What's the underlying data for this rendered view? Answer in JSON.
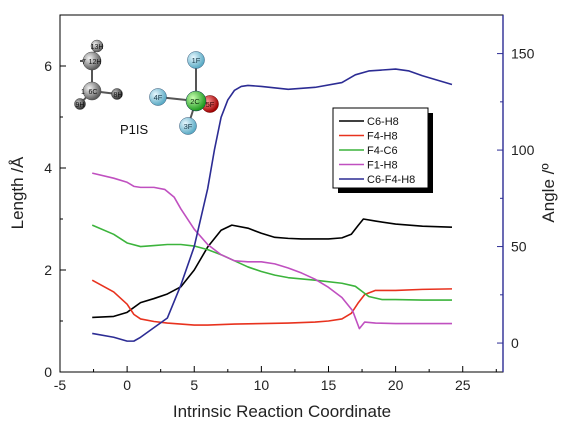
{
  "chart_data": {
    "type": "line",
    "xlabel": "Intrinsic Reaction Coordinate",
    "ylabel_left": "Length /Å",
    "ylabel_right": "Angle /º",
    "xlim": [
      -5,
      28
    ],
    "ylim_left": [
      0,
      7
    ],
    "ylim_right": [
      -15,
      170
    ],
    "x_ticks": [
      -5,
      0,
      5,
      10,
      15,
      20,
      25
    ],
    "y_ticks_left": [
      0,
      2,
      4,
      6
    ],
    "y_ticks_right": [
      0,
      50,
      100,
      150
    ],
    "grid": false,
    "legend_position": "center-right",
    "series": [
      {
        "name": "C6-H8",
        "axis": "left",
        "color": "#000000",
        "x": [
          -2.6,
          -1,
          0,
          1,
          2,
          3,
          4,
          5,
          6,
          7,
          7.8,
          9,
          10,
          11,
          12,
          13,
          14,
          15,
          16,
          16.7,
          17.2,
          17.6,
          18.5,
          20,
          22,
          24.2
        ],
        "y": [
          1.07,
          1.09,
          1.17,
          1.36,
          1.44,
          1.53,
          1.67,
          2.0,
          2.45,
          2.78,
          2.88,
          2.82,
          2.72,
          2.64,
          2.62,
          2.61,
          2.61,
          2.61,
          2.63,
          2.7,
          2.87,
          3.0,
          2.96,
          2.9,
          2.86,
          2.84
        ]
      },
      {
        "name": "F4-H8",
        "axis": "left",
        "color": "#e8321e",
        "x": [
          -2.6,
          -1,
          0,
          0.5,
          1,
          2,
          3,
          4,
          5,
          6,
          8,
          10,
          12,
          14,
          15,
          16,
          16.7,
          17.2,
          17.7,
          18.5,
          20,
          22,
          24.2
        ],
        "y": [
          1.8,
          1.57,
          1.33,
          1.13,
          1.04,
          0.99,
          0.96,
          0.94,
          0.92,
          0.92,
          0.94,
          0.95,
          0.96,
          0.98,
          1.0,
          1.04,
          1.15,
          1.35,
          1.52,
          1.6,
          1.6,
          1.62,
          1.63
        ]
      },
      {
        "name": "F4-C6",
        "axis": "left",
        "color": "#3cb43c",
        "x": [
          -2.6,
          -1,
          0,
          1,
          2,
          3,
          4,
          5,
          6,
          7,
          8,
          9,
          10,
          11,
          12,
          14,
          16,
          17,
          17.5,
          18,
          19,
          20,
          22,
          24.2
        ],
        "y": [
          2.88,
          2.7,
          2.53,
          2.46,
          2.48,
          2.5,
          2.5,
          2.47,
          2.4,
          2.3,
          2.18,
          2.06,
          1.97,
          1.9,
          1.85,
          1.8,
          1.74,
          1.68,
          1.58,
          1.48,
          1.42,
          1.42,
          1.41,
          1.41
        ]
      },
      {
        "name": "F1-H8",
        "axis": "left",
        "color": "#c050c0",
        "x": [
          -2.6,
          -1,
          0,
          0.5,
          1,
          2,
          2.8,
          3.5,
          4,
          5,
          6,
          7,
          8,
          9,
          10,
          11,
          12,
          13,
          14,
          15,
          16,
          16.8,
          17.3,
          17.7,
          18.5,
          20,
          22,
          24.2
        ],
        "y": [
          3.9,
          3.8,
          3.72,
          3.64,
          3.62,
          3.62,
          3.58,
          3.43,
          3.2,
          2.8,
          2.5,
          2.3,
          2.18,
          2.16,
          2.16,
          2.12,
          2.04,
          1.94,
          1.82,
          1.66,
          1.46,
          1.2,
          0.85,
          0.98,
          0.96,
          0.95,
          0.95,
          0.95
        ]
      },
      {
        "name": "C6-F4-H8",
        "axis": "right",
        "color": "#2c2c94",
        "x": [
          -2.6,
          -1,
          0,
          0.5,
          1,
          2,
          3,
          4,
          5,
          6,
          6.5,
          7,
          7.5,
          8,
          8.5,
          9,
          10,
          12,
          14,
          16,
          17,
          18,
          19,
          20,
          21,
          22,
          24.2
        ],
        "y": [
          5,
          3,
          1,
          1,
          3,
          8,
          13,
          30,
          50,
          80,
          100,
          117,
          126,
          131,
          133,
          133.5,
          133,
          131.5,
          132.5,
          135,
          139,
          141,
          141.5,
          142,
          141,
          138.5,
          134
        ]
      }
    ]
  },
  "molecule": {
    "label": "P1IS",
    "atoms": [
      "13H",
      "12H",
      "7",
      "1",
      "6C",
      "8H",
      "9H",
      "1F",
      "4F",
      "2C",
      "5F",
      "3F"
    ]
  }
}
